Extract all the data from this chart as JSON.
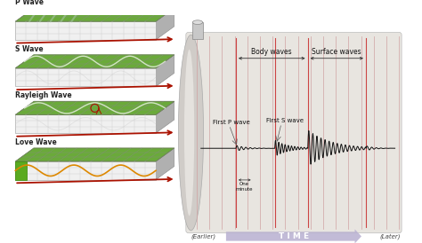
{
  "wave_labels": [
    "P Wave",
    "S Wave",
    "Rayleigh Wave",
    "Love Wave"
  ],
  "right_labels": {
    "body_waves": "Body waves",
    "surface_waves": "Surface waves",
    "first_p": "First P wave",
    "first_s": "First S wave",
    "one_minute": "One\nminute",
    "time": "T I M E",
    "earlier": "(Earlier)",
    "later": "(Later)"
  },
  "colors": {
    "background": "#ffffff",
    "green_top": "#6aaa3a",
    "green_side": "#4a8a20",
    "front_face": "#e8e8e8",
    "grid_line": "#aaaaaa",
    "red_arrow": "#aa1100",
    "drum_bg": "#d8d5d0",
    "drum_stripe": "#c0b8b0",
    "drum_red_line": "#cc8888",
    "time_arrow": "#b8b0d0",
    "wave_signal": "#111111",
    "label_color": "#222222",
    "annotation_color": "#333333"
  }
}
